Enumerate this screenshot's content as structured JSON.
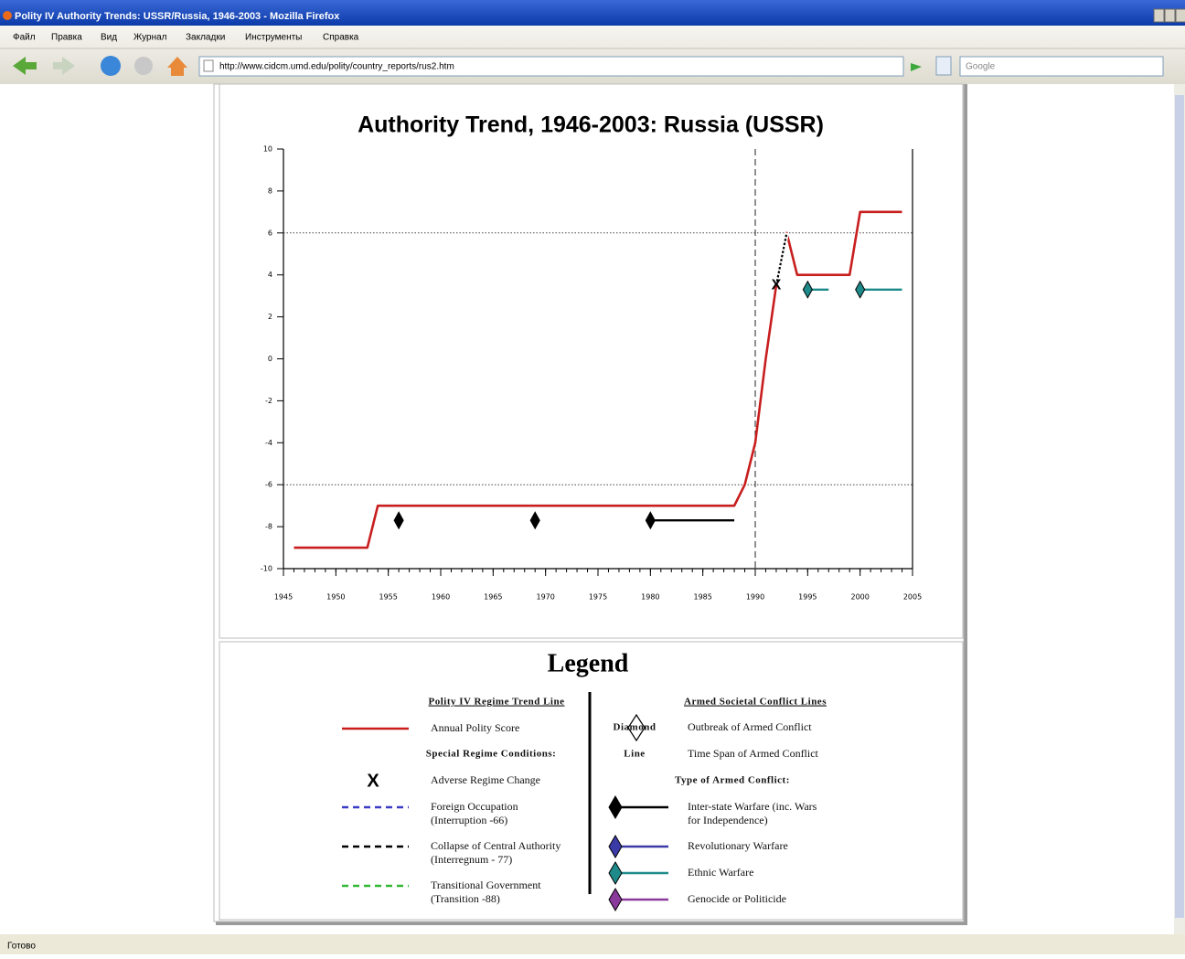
{
  "browser": {
    "title": "Polity IV Authority Trends: USSR/Russia, 1946-2003 - Mozilla Firefox",
    "menu": [
      "Файл",
      "Правка",
      "Вид",
      "Журнал",
      "Закладки",
      "Инструменты",
      "Справка"
    ],
    "url": "http://www.cidcm.umd.edu/polity/country_reports/rus2.htm",
    "search": "Google",
    "status": "Готово"
  },
  "chart_data": {
    "type": "line",
    "title": "Authority Trend, 1946-2003: Russia (USSR)",
    "x": [
      1946,
      1947,
      1948,
      1949,
      1950,
      1951,
      1952,
      1953,
      1954,
      1955,
      1956,
      1957,
      1958,
      1959,
      1960,
      1961,
      1962,
      1963,
      1964,
      1965,
      1966,
      1967,
      1968,
      1969,
      1970,
      1971,
      1972,
      1973,
      1974,
      1975,
      1976,
      1977,
      1978,
      1979,
      1980,
      1981,
      1982,
      1983,
      1984,
      1985,
      1986,
      1987,
      1988,
      1989,
      1990,
      1991,
      1992,
      1993,
      1994,
      1995,
      1996,
      1997,
      1998,
      1999,
      2000,
      2001,
      2002,
      2003,
      2004
    ],
    "series": [
      {
        "name": "Annual Polity Score",
        "color": "#c81e1e",
        "values": [
          -9,
          -9,
          -9,
          -9,
          -9,
          -9,
          -9,
          -9,
          -7,
          -7,
          -7,
          -7,
          -7,
          -7,
          -7,
          -7,
          -7,
          -7,
          -7,
          -7,
          -7,
          -7,
          -7,
          -7,
          -7,
          -7,
          -7,
          -7,
          -7,
          -7,
          -7,
          -7,
          -7,
          -7,
          -7,
          -7,
          -7,
          -7,
          -7,
          -7,
          -7,
          -7,
          -7,
          -6,
          -4,
          0,
          3.5,
          6,
          4,
          4,
          4,
          4,
          4,
          4,
          7,
          7,
          7,
          7,
          7
        ]
      },
      {
        "condition": 1,
        "values": [
          null,
          null,
          null,
          null,
          null,
          null,
          null,
          null,
          null,
          null,
          null,
          null,
          null,
          null,
          null,
          null,
          null,
          null,
          null,
          null,
          null,
          null,
          null,
          null,
          null,
          null,
          null,
          null,
          null,
          null,
          null,
          null,
          null,
          null,
          null,
          null,
          null,
          null,
          null,
          null,
          null,
          null,
          null,
          null,
          null,
          null,
          3.5,
          6,
          null,
          null,
          null,
          null,
          null,
          null,
          null,
          null,
          null,
          null,
          null
        ]
      }
    ],
    "conflicts": [
      {
        "type": 0,
        "start": 1956,
        "end": 1956,
        "y": -7.7
      },
      {
        "type": 0,
        "start": 1969,
        "end": 1969,
        "y": -7.7
      },
      {
        "type": 0,
        "start": 1980,
        "end": 1988,
        "y": -7.7
      },
      {
        "type": 2,
        "start": 1995,
        "end": 1997,
        "y": 3.3
      },
      {
        "type": 2,
        "start": 2000,
        "end": 2004,
        "y": 3.3
      }
    ],
    "annotations": [
      {
        "text": "X",
        "x": 1992,
        "y": 3.5
      }
    ],
    "hlines": [
      6,
      -6
    ],
    "vlines": [
      1990
    ],
    "xlim": [
      1945,
      2005
    ],
    "xticks": [
      1945,
      1950,
      1955,
      1960,
      1965,
      1970,
      1975,
      1980,
      1985,
      1990,
      1995,
      2000,
      2005
    ],
    "ylim": [
      -10,
      10
    ],
    "yticks": [
      10,
      8,
      6,
      4,
      2,
      0,
      -2,
      -4,
      -6,
      -8,
      -10
    ]
  },
  "legend": {
    "title": "Legend",
    "regime_heading": "Polity IV Regime Trend Line",
    "conditions_heading": "Special Regime Conditions:",
    "adverse_label": "Adverse Regime Change",
    "conditions": [
      {
        "label": "Foreign Occupation",
        "code": "(Interruption -66)",
        "color": "#3b3bc8"
      },
      {
        "label": "Collapse of Central Authority",
        "code": "(Interregnum - 77)",
        "color": "#000000"
      },
      {
        "label": "Transitional Government",
        "code": "(Transition -88)",
        "color": "#33b833"
      }
    ],
    "conflict_heading": "Armed Societal Conflict Lines",
    "keys": [
      {
        "key": "Diamond",
        "label": "Outbreak of Armed Conflict"
      },
      {
        "key": "Line",
        "label": "Time Span of Armed Conflict"
      }
    ],
    "types_heading": "Type of Armed Conflict:",
    "conflict_types": [
      {
        "lines": [
          "Inter-state Warfare (inc. Wars",
          "for Independence)"
        ],
        "color": "#000000"
      },
      {
        "lines": [
          "Revolutionary Warfare"
        ],
        "color": "#3b3ba8"
      },
      {
        "lines": [
          "Ethnic Warfare"
        ],
        "color": "#1e8a8a"
      },
      {
        "lines": [
          "Genocide or Politicide"
        ],
        "color": "#8a3a9a"
      }
    ]
  }
}
